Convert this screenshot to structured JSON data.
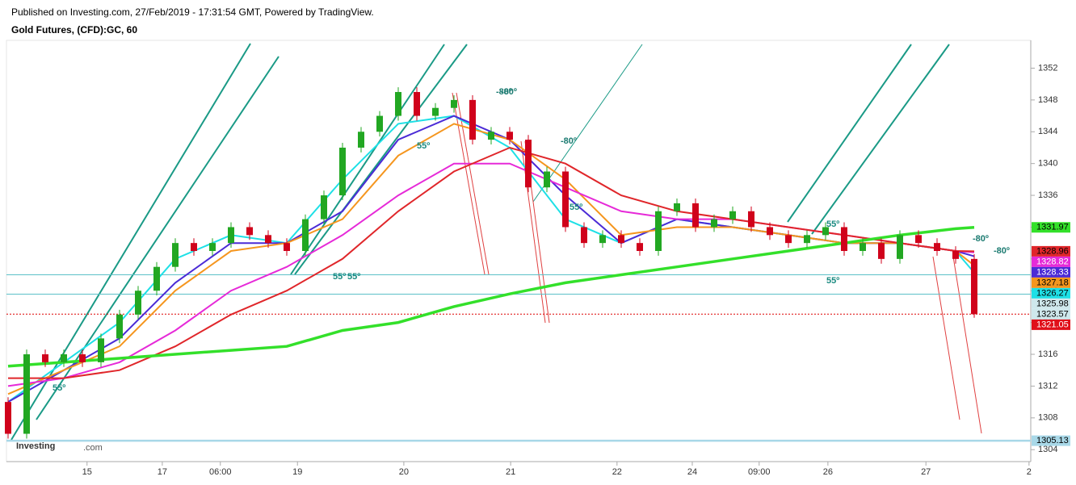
{
  "header": {
    "published": "Published on Investing.com, 27/Feb/2019 - 17:31:54 GMT, Powered by TradingView.",
    "symbol": "Gold Futures, (CFD):GC, 60",
    "logo": "Investing",
    "logo_suffix": ".com"
  },
  "chart_data": {
    "type": "candlestick",
    "x": [
      0,
      4,
      8,
      12,
      16,
      20,
      24,
      28,
      32,
      36,
      40,
      44,
      48,
      52,
      56,
      60,
      64,
      68,
      72,
      76,
      80,
      84,
      88,
      92,
      96,
      100,
      104,
      108,
      112,
      116,
      120,
      124,
      128,
      132,
      136,
      140,
      144,
      148,
      152,
      156,
      160,
      164,
      168,
      172,
      176,
      180,
      184,
      188,
      192,
      196,
      200,
      204,
      208
    ],
    "open": [
      1310,
      1306,
      1316,
      1315,
      1316,
      1315,
      1318,
      1321,
      1324,
      1327,
      1330,
      1329,
      1330,
      1332,
      1331,
      1330,
      1329,
      1333,
      1336,
      1342,
      1344,
      1346,
      1349,
      1346,
      1347,
      1348,
      1343,
      1344,
      1343,
      1337,
      1339,
      1332,
      1330,
      1331,
      1330,
      1329,
      1334,
      1335,
      1332,
      1333,
      1334,
      1332,
      1331,
      1330,
      1331,
      1332,
      1329,
      1330,
      1328,
      1331,
      1330,
      1329,
      1328
    ],
    "high": [
      1310.6,
      1316.6,
      1316.6,
      1316.6,
      1316.6,
      1318.6,
      1321.6,
      1324.6,
      1327.6,
      1330.6,
      1330.6,
      1330.6,
      1332.6,
      1332.6,
      1331.6,
      1330.6,
      1333.6,
      1336.6,
      1342.6,
      1344.6,
      1346.6,
      1349.6,
      1349.6,
      1347.6,
      1348.6,
      1348.6,
      1344.6,
      1344.6,
      1343.6,
      1339.6,
      1339.6,
      1332.6,
      1331.6,
      1331.6,
      1330.6,
      1334.6,
      1335.6,
      1335.6,
      1333.6,
      1334.6,
      1334.6,
      1332.6,
      1331.6,
      1331.6,
      1332.6,
      1332.6,
      1330.6,
      1330.6,
      1331.6,
      1331.6,
      1330.6,
      1329.6,
      1328.6
    ],
    "low": [
      1305.4,
      1305.4,
      1314.4,
      1314.4,
      1314.4,
      1314.4,
      1317.4,
      1320.4,
      1323.4,
      1326.4,
      1328.4,
      1328.4,
      1329.4,
      1330.4,
      1329.4,
      1328.4,
      1328.4,
      1332.4,
      1335.4,
      1341.4,
      1343.4,
      1345.4,
      1345.4,
      1345.4,
      1346.4,
      1342.4,
      1342.4,
      1342.4,
      1336.4,
      1336.4,
      1331.4,
      1329.4,
      1329.4,
      1329.4,
      1328.4,
      1328.4,
      1333.4,
      1331.4,
      1331.4,
      1332.4,
      1331.4,
      1330.4,
      1329.4,
      1329.4,
      1330.4,
      1328.4,
      1328.4,
      1327.4,
      1327.4,
      1329.4,
      1328.4,
      1327.4,
      1320.6
    ],
    "close": [
      1306,
      1316,
      1315,
      1316,
      1315,
      1318,
      1321,
      1324,
      1327,
      1330,
      1329,
      1330,
      1332,
      1331,
      1330,
      1329,
      1333,
      1336,
      1342,
      1344,
      1346,
      1349,
      1346,
      1347,
      1348,
      1343,
      1344,
      1343,
      1337,
      1339,
      1332,
      1330,
      1331,
      1330,
      1329,
      1334,
      1335,
      1332,
      1333,
      1334,
      1332,
      1331,
      1330,
      1331,
      1332,
      1329,
      1330,
      1328,
      1331,
      1330,
      1329,
      1328,
      1321.05
    ],
    "up_color": "#22a722",
    "down_color": "#d0021b",
    "averages": [
      {
        "color": "#1ee0e6",
        "x": [
          0,
          12,
          24,
          36,
          48,
          60,
          72,
          84,
          96,
          108,
          120,
          132,
          144,
          156,
          168,
          180,
          192,
          204,
          208
        ],
        "values": [
          1310,
          1315,
          1320,
          1328,
          1331,
          1330,
          1338,
          1345,
          1346,
          1342,
          1333,
          1330,
          1333,
          1332,
          1331,
          1330,
          1330,
          1329,
          1326.27
        ]
      },
      {
        "color": "#4b2bd6",
        "x": [
          0,
          12,
          24,
          36,
          48,
          60,
          72,
          84,
          96,
          108,
          120,
          132,
          144,
          156,
          168,
          180,
          192,
          204,
          208
        ],
        "values": [
          1310,
          1314,
          1318,
          1325,
          1330,
          1330,
          1334,
          1343,
          1346,
          1343,
          1336,
          1330,
          1333,
          1332,
          1331,
          1330,
          1330,
          1329,
          1328.33
        ]
      },
      {
        "color": "#f5961e",
        "x": [
          0,
          12,
          24,
          36,
          48,
          60,
          72,
          84,
          96,
          108,
          120,
          132,
          144,
          156,
          168,
          180,
          192,
          204,
          208
        ],
        "values": [
          1311,
          1314,
          1317,
          1324,
          1329,
          1330,
          1333,
          1341,
          1345,
          1343,
          1338,
          1331,
          1332,
          1332,
          1331,
          1330,
          1330,
          1329,
          1327.18
        ]
      },
      {
        "color": "#e62ad8",
        "x": [
          0,
          12,
          24,
          36,
          48,
          60,
          72,
          84,
          96,
          108,
          120,
          132,
          144,
          156,
          168,
          180,
          192,
          204,
          208
        ],
        "values": [
          1312,
          1313,
          1315,
          1319,
          1324,
          1327,
          1331,
          1336,
          1340,
          1340,
          1337,
          1334,
          1333,
          1333,
          1332,
          1331,
          1330,
          1329,
          1328.82
        ]
      },
      {
        "color": "#e0262a",
        "x": [
          0,
          12,
          24,
          36,
          48,
          60,
          72,
          84,
          96,
          108,
          120,
          132,
          144,
          156,
          168,
          180,
          192,
          204,
          208
        ],
        "values": [
          1313,
          1313,
          1314,
          1317,
          1321,
          1324,
          1328,
          1334,
          1339,
          1342,
          1340,
          1336,
          1334,
          1333,
          1332,
          1331,
          1330,
          1329,
          1328.96
        ]
      },
      {
        "color": "#33e02a",
        "x": [
          0,
          12,
          24,
          36,
          48,
          60,
          72,
          84,
          96,
          108,
          120,
          132,
          144,
          156,
          168,
          180,
          192,
          204,
          208
        ],
        "values": [
          1314.5,
          1315,
          1315.5,
          1316,
          1316.5,
          1317,
          1319,
          1320,
          1322,
          1323.6,
          1325,
          1326,
          1327,
          1328,
          1329,
          1330,
          1331,
          1331.8,
          1331.97
        ]
      }
    ],
    "price_labels": [
      {
        "value": 1331.97,
        "color": "#33e02a",
        "text_color": "#000"
      },
      {
        "value": 1328.96,
        "color": "#e0262a",
        "text_color": "#000"
      },
      {
        "value": 1328.82,
        "color": "#e62ad8",
        "text_color": "#fff"
      },
      {
        "value": 1328.33,
        "color": "#4b2bd6",
        "text_color": "#fff"
      },
      {
        "value": 1327.18,
        "color": "#f5961e",
        "text_color": "#000"
      },
      {
        "value": 1326.27,
        "color": "#1ee0e6",
        "text_color": "#000"
      },
      {
        "value": 1325.98,
        "color": "#cfe8ec",
        "text_color": "#000"
      },
      {
        "value": 1323.57,
        "color": "#cfe8ec",
        "text_color": "#000"
      },
      {
        "value": 1321.05,
        "color": "#e0101a",
        "text_color": "#fff"
      },
      {
        "value": 1305.13,
        "color": "#a8d8e8",
        "text_color": "#000"
      }
    ],
    "hlines": [
      1305.13,
      1326,
      1323.57
    ],
    "last_price": 1321.05,
    "annotations": [
      "55º",
      "55º",
      "55º",
      "55º",
      "55º",
      "55º",
      "55º",
      "-80º",
      "-80º",
      "-80º",
      "-80º",
      "-80º"
    ],
    "xlim": [
      0,
      221
    ],
    "ylim": [
      1302.5,
      1355.5
    ],
    "yticks": [
      1304,
      1308,
      1312,
      1316,
      1320,
      1324,
      1328,
      1332,
      1336,
      1340,
      1344,
      1348,
      1352
    ],
    "xticks": [
      {
        "value": 17,
        "label": "15"
      },
      {
        "value": 33.2,
        "label": "17"
      },
      {
        "value": 45.7,
        "label": "06:00"
      },
      {
        "value": 62.3,
        "label": "19"
      },
      {
        "value": 85.2,
        "label": "20"
      },
      {
        "value": 108.2,
        "label": "21"
      },
      {
        "value": 131.1,
        "label": "22"
      },
      {
        "value": 147.3,
        "label": "24"
      },
      {
        "value": 161.7,
        "label": "09:00"
      },
      {
        "value": 176.5,
        "label": "26"
      },
      {
        "value": 197.6,
        "label": "27"
      },
      {
        "value": 219.8,
        "label": "2"
      }
    ]
  }
}
